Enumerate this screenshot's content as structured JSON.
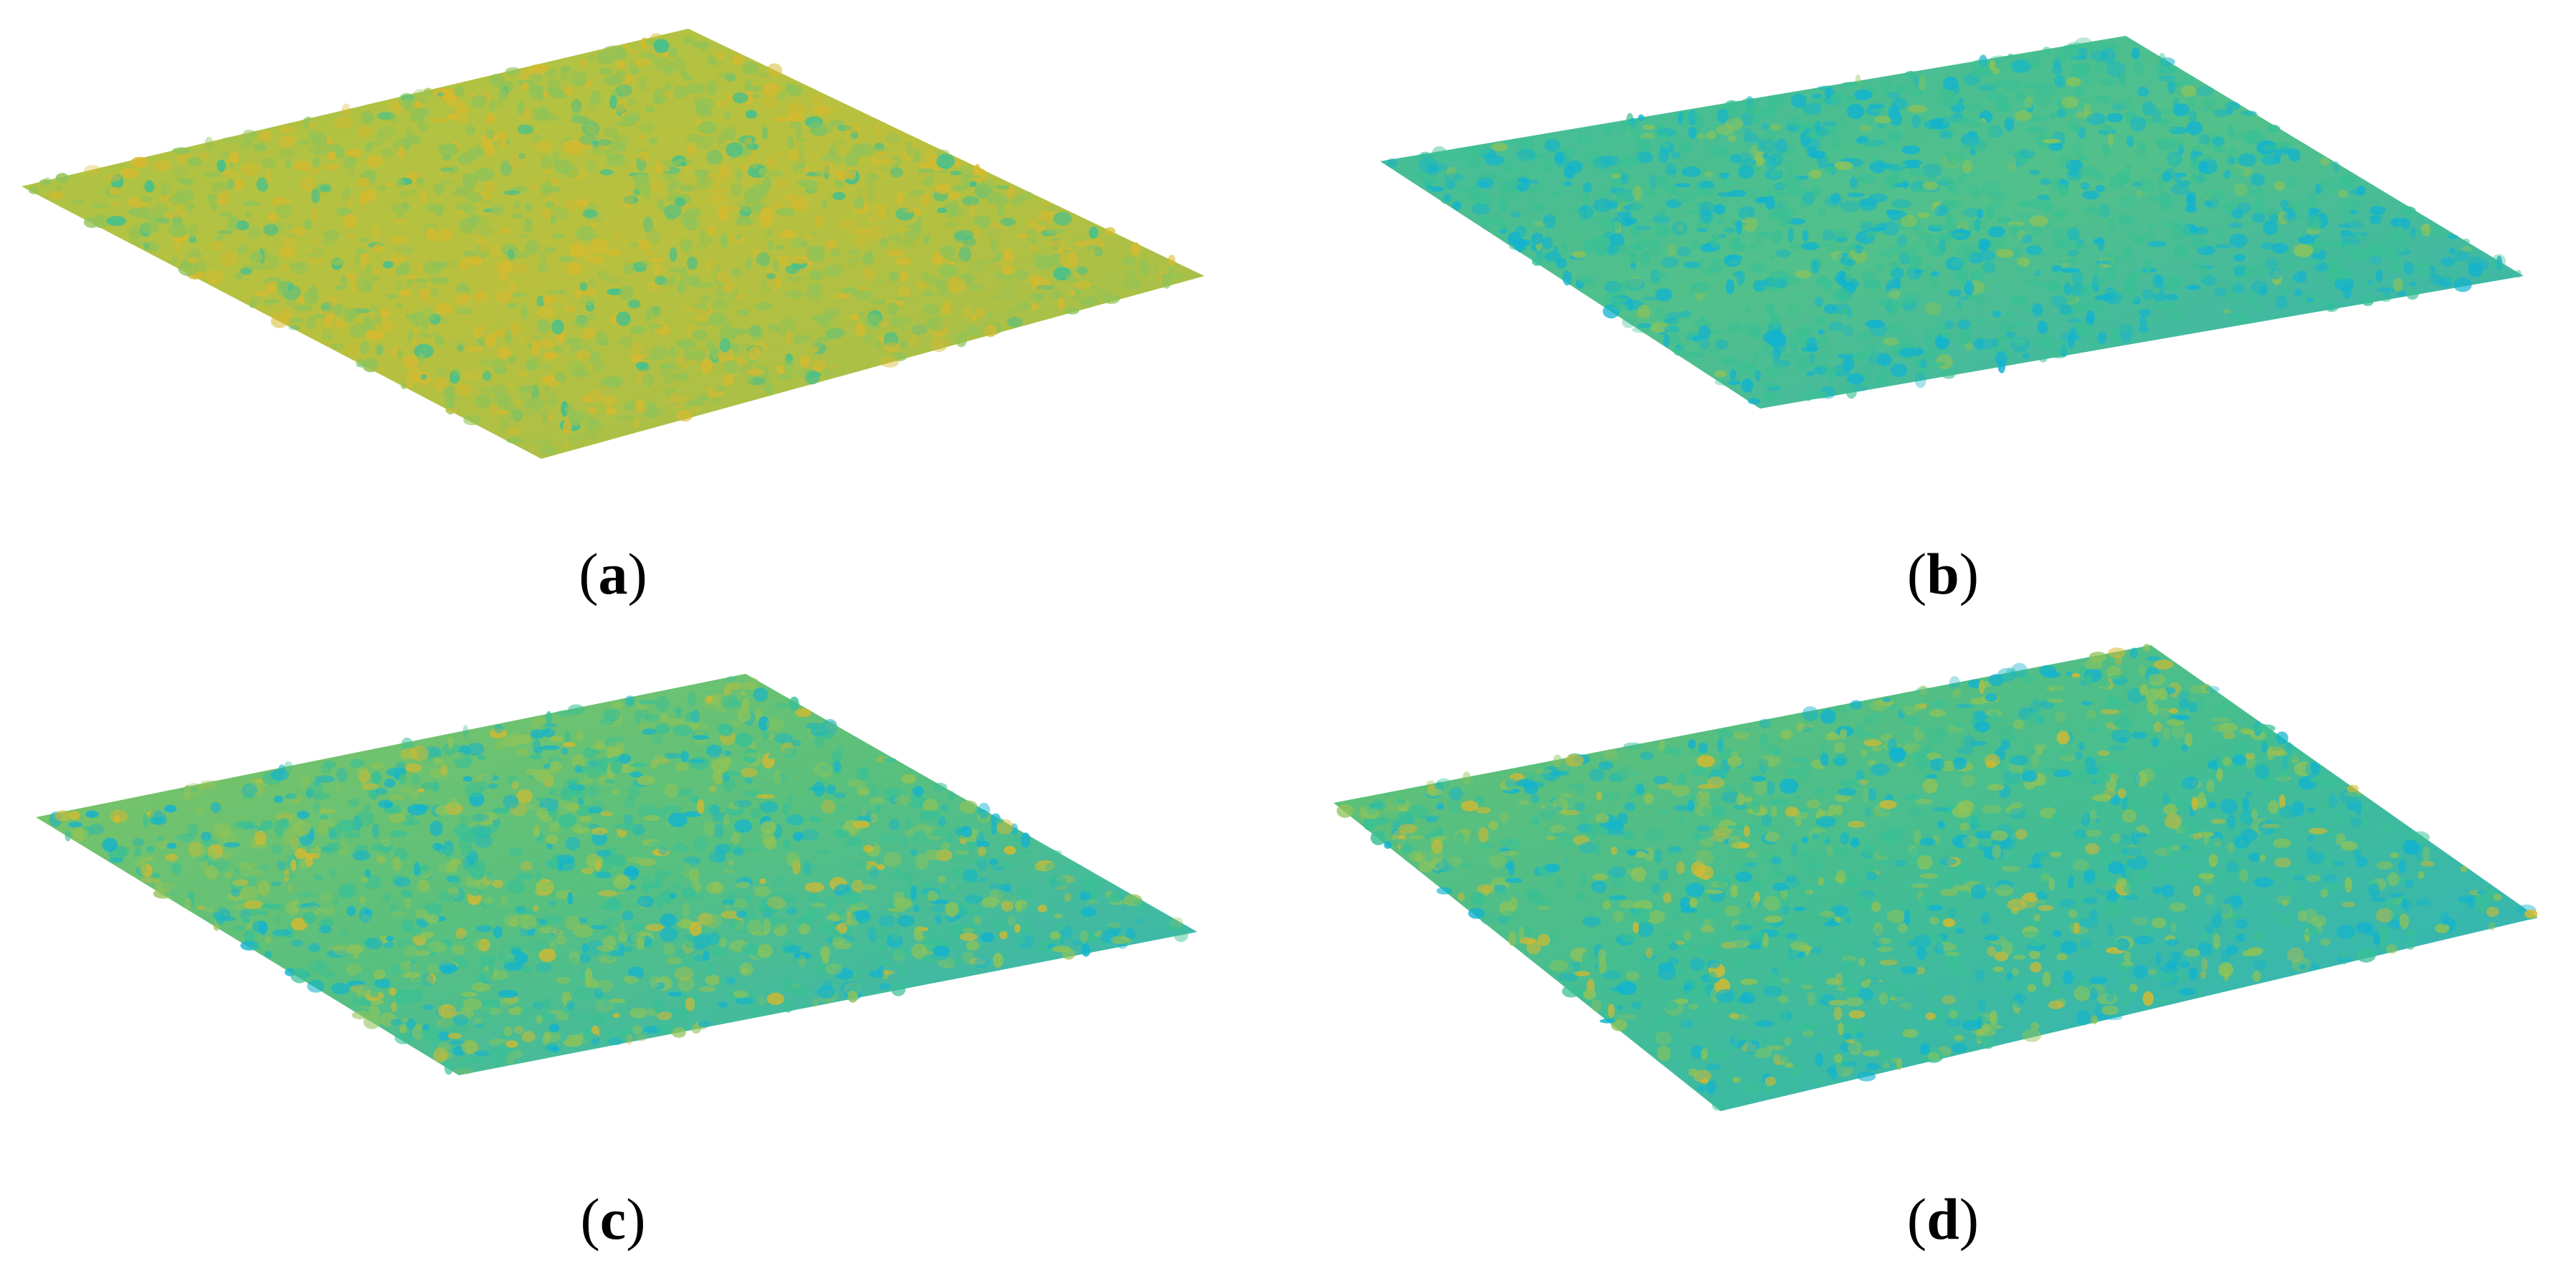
{
  "panels": [
    {
      "id": "a",
      "label_open": "(",
      "label_letter": "a",
      "label_close": ")",
      "dominant": "yellow-green"
    },
    {
      "id": "b",
      "label_open": "(",
      "label_letter": "b",
      "label_close": ")",
      "dominant": "cyan-green"
    },
    {
      "id": "c",
      "label_open": "(",
      "label_letter": "c",
      "label_close": ")",
      "dominant": "green-cyan"
    },
    {
      "id": "d",
      "label_open": "(",
      "label_letter": "d",
      "label_close": ")",
      "dominant": "green-blue"
    }
  ],
  "colormap": [
    "#3e26a8",
    "#2e87f7",
    "#12b3cf",
    "#3ac095",
    "#8fc358",
    "#d7b92e",
    "#f9dd24"
  ]
}
